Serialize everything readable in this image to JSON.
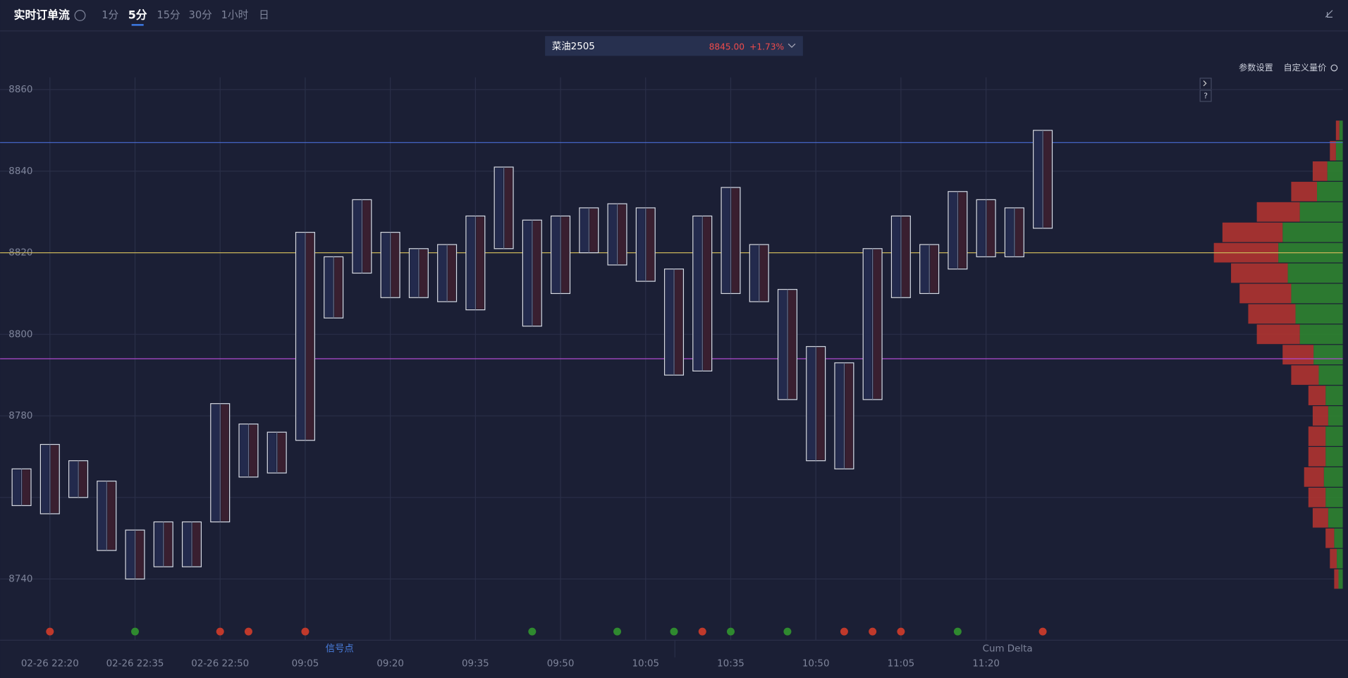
{
  "header": {
    "title": "实时订单流",
    "periods": [
      "1分",
      "5分",
      "15分",
      "30分",
      "1小时",
      "日"
    ],
    "active_period": 1,
    "symbol": "菜油2505",
    "price": "8845.00",
    "change": "+1.73%",
    "links": [
      "参数设置",
      "自定义量价"
    ]
  },
  "chart_data": {
    "type": "candlestick",
    "categories": [
      null,
      "02-26 22:20",
      null,
      null,
      "02-26 22:35",
      null,
      null,
      "02-26 22:50",
      null,
      null,
      "09:05",
      null,
      null,
      "09:20",
      null,
      null,
      "09:35",
      null,
      null,
      "09:50",
      null,
      null,
      "10:05",
      null,
      null,
      "10:35",
      null,
      null,
      "10:50",
      null,
      null,
      "11:05",
      null,
      null,
      "11:20",
      null,
      null
    ],
    "high": [
      8767,
      8773,
      8769,
      8764,
      8752,
      8754,
      8754,
      8783,
      8778,
      8776,
      8825,
      8819,
      8833,
      8825,
      8821,
      8822,
      8829,
      8841,
      8828,
      8829,
      8831,
      8832,
      8831,
      8816,
      8829,
      8836,
      8822,
      8811,
      8797,
      8793,
      8821,
      8829,
      8822,
      8835,
      8833,
      8831,
      8850
    ],
    "low": [
      8758,
      8756,
      8760,
      8747,
      8740,
      8743,
      8743,
      8754,
      8765,
      8766,
      8774,
      8804,
      8815,
      8809,
      8809,
      8808,
      8806,
      8821,
      8802,
      8810,
      8820,
      8817,
      8813,
      8790,
      8791,
      8810,
      8808,
      8784,
      8769,
      8767,
      8784,
      8809,
      8810,
      8816,
      8819,
      8819,
      8826
    ],
    "ylim": [
      8725,
      8863
    ],
    "yticks": [
      8740,
      8760,
      8780,
      8800,
      8820,
      8840,
      8860
    ],
    "ytick_labels_shown": [
      8740,
      8780,
      8800,
      8820,
      8840,
      8860
    ],
    "lines": [
      {
        "value": 8847,
        "color": "#4a6fd6"
      },
      {
        "value": 8820,
        "color": "#c9b458"
      },
      {
        "value": 8794,
        "color": "#b04ad0"
      }
    ],
    "profile": {
      "prices": [
        8740,
        8745,
        8750,
        8755,
        8760,
        8765,
        8770,
        8775,
        8780,
        8785,
        8790,
        8795,
        8800,
        8805,
        8810,
        8815,
        8820,
        8825,
        8830,
        8835,
        8840,
        8845,
        8850
      ],
      "buy": [
        5,
        7,
        10,
        17,
        20,
        22,
        20,
        20,
        17,
        20,
        28,
        34,
        50,
        55,
        60,
        64,
        75,
        70,
        50,
        30,
        18,
        8,
        4
      ],
      "sell": [
        5,
        8,
        10,
        18,
        20,
        23,
        20,
        20,
        18,
        20,
        32,
        36,
        50,
        55,
        60,
        66,
        75,
        70,
        50,
        30,
        17,
        7,
        4
      ],
      "buy_color": "#2f8a2f",
      "sell_color": "#b8352f"
    }
  },
  "footer": {
    "tabs": [
      "信号点",
      "Cum Delta"
    ]
  }
}
